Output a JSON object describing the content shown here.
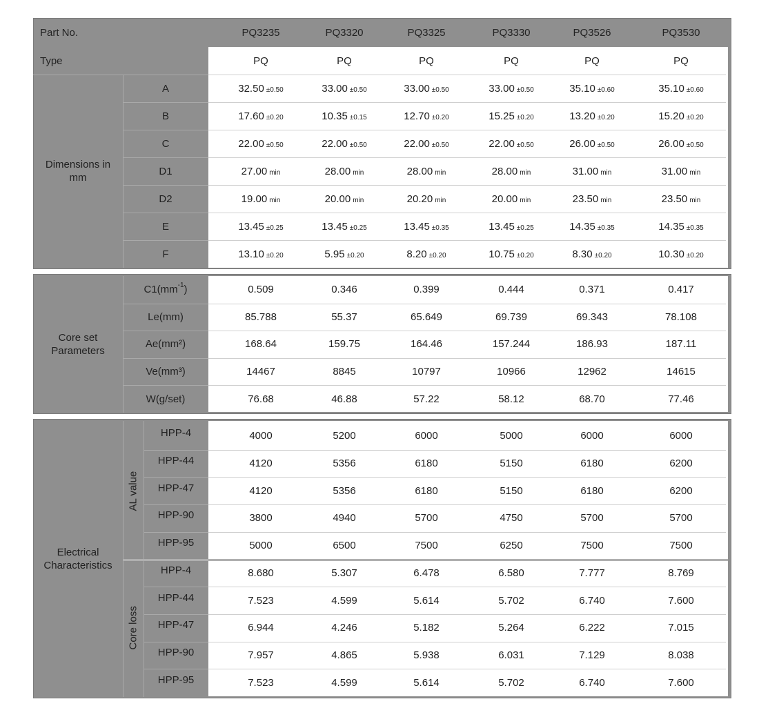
{
  "header": {
    "label": "Part No.",
    "parts": [
      "PQ3235",
      "PQ3320",
      "PQ3325",
      "PQ3330",
      "PQ3526",
      "PQ3530"
    ]
  },
  "type_row": {
    "label": "Type",
    "values": [
      "PQ",
      "PQ",
      "PQ",
      "PQ",
      "PQ",
      "PQ"
    ]
  },
  "dimensions": {
    "label": "Dimensions in mm",
    "rows": [
      {
        "label": "A",
        "values": [
          [
            "32.50",
            "±0.50"
          ],
          [
            "33.00",
            "±0.50"
          ],
          [
            "33.00",
            "±0.50"
          ],
          [
            "33.00",
            "±0.50"
          ],
          [
            "35.10",
            "±0.60"
          ],
          [
            "35.10",
            "±0.60"
          ]
        ]
      },
      {
        "label": "B",
        "values": [
          [
            "17.60",
            "±0.20"
          ],
          [
            "10.35",
            "±0.15"
          ],
          [
            "12.70",
            "±0.20"
          ],
          [
            "15.25",
            "±0.20"
          ],
          [
            "13.20",
            "±0.20"
          ],
          [
            "15.20",
            "±0.20"
          ]
        ]
      },
      {
        "label": "C",
        "values": [
          [
            "22.00",
            "±0.50"
          ],
          [
            "22.00",
            "±0.50"
          ],
          [
            "22.00",
            "±0.50"
          ],
          [
            "22.00",
            "±0.50"
          ],
          [
            "26.00",
            "±0.50"
          ],
          [
            "26.00",
            "±0.50"
          ]
        ]
      },
      {
        "label": "D1",
        "values": [
          [
            "27.00",
            "min"
          ],
          [
            "28.00",
            "min"
          ],
          [
            "28.00",
            "min"
          ],
          [
            "28.00",
            "min"
          ],
          [
            "31.00",
            "min"
          ],
          [
            "31.00",
            "min"
          ]
        ]
      },
      {
        "label": "D2",
        "values": [
          [
            "19.00",
            "min"
          ],
          [
            "20.00",
            "min"
          ],
          [
            "20.20",
            "min"
          ],
          [
            "20.00",
            "min"
          ],
          [
            "23.50",
            "min"
          ],
          [
            "23.50",
            "min"
          ]
        ]
      },
      {
        "label": "E",
        "values": [
          [
            "13.45",
            "±0.25"
          ],
          [
            "13.45",
            "±0.25"
          ],
          [
            "13.45",
            "±0.35"
          ],
          [
            "13.45",
            "±0.25"
          ],
          [
            "14.35",
            "±0.35"
          ],
          [
            "14.35",
            "±0.35"
          ]
        ]
      },
      {
        "label": "F",
        "values": [
          [
            "13.10",
            "±0.20"
          ],
          [
            "5.95",
            "±0.20"
          ],
          [
            "8.20",
            "±0.20"
          ],
          [
            "10.75",
            "±0.20"
          ],
          [
            "8.30",
            "±0.20"
          ],
          [
            "10.30",
            "±0.20"
          ]
        ]
      }
    ]
  },
  "core_set": {
    "label": "Core set Parameters",
    "rows": [
      {
        "label": {
          "text": "C1(mm",
          "sup": "-1",
          "tail": ")"
        },
        "values": [
          "0.509",
          "0.346",
          "0.399",
          "0.444",
          "0.371",
          "0.417"
        ]
      },
      {
        "label": "Le(mm)",
        "values": [
          "85.788",
          "55.37",
          "65.649",
          "69.739",
          "69.343",
          "78.108"
        ]
      },
      {
        "label": "Ae(mm²)",
        "values": [
          "168.64",
          "159.75",
          "164.46",
          "157.244",
          "186.93",
          "187.11"
        ]
      },
      {
        "label": "Ve(mm³)",
        "values": [
          "14467",
          "8845",
          "10797",
          "10966",
          "12962",
          "14615"
        ]
      },
      {
        "label": "W(g/set)",
        "values": [
          "76.68",
          "46.88",
          "57.22",
          "58.12",
          "68.70",
          "77.46"
        ]
      }
    ]
  },
  "electrical": {
    "label": "Electrical Characteristics",
    "groups": [
      {
        "label": "AL value",
        "rows": [
          {
            "label": "HPP-4",
            "values": [
              "4000",
              "5200",
              "6000",
              "5000",
              "6000",
              "6000"
            ]
          },
          {
            "label": "HPP-44",
            "values": [
              "4120",
              "5356",
              "6180",
              "5150",
              "6180",
              "6200"
            ]
          },
          {
            "label": "HPP-47",
            "values": [
              "4120",
              "5356",
              "6180",
              "5150",
              "6180",
              "6200"
            ]
          },
          {
            "label": "HPP-90",
            "values": [
              "3800",
              "4940",
              "5700",
              "4750",
              "5700",
              "5700"
            ]
          },
          {
            "label": "HPP-95",
            "values": [
              "5000",
              "6500",
              "7500",
              "6250",
              "7500",
              "7500"
            ]
          }
        ]
      },
      {
        "label": "Core loss",
        "rows": [
          {
            "label": "HPP-4",
            "values": [
              "8.680",
              "5.307",
              "6.478",
              "6.580",
              "7.777",
              "8.769"
            ]
          },
          {
            "label": "HPP-44",
            "values": [
              "7.523",
              "4.599",
              "5.614",
              "5.702",
              "6.740",
              "7.600"
            ]
          },
          {
            "label": "HPP-47",
            "values": [
              "6.944",
              "4.246",
              "5.182",
              "5.264",
              "6.222",
              "7.015"
            ]
          },
          {
            "label": "HPP-90",
            "values": [
              "7.957",
              "4.865",
              "5.938",
              "6.031",
              "7.129",
              "8.038"
            ]
          },
          {
            "label": "HPP-95",
            "values": [
              "7.523",
              "4.599",
              "5.614",
              "5.702",
              "6.740",
              "7.600"
            ]
          }
        ]
      }
    ]
  }
}
